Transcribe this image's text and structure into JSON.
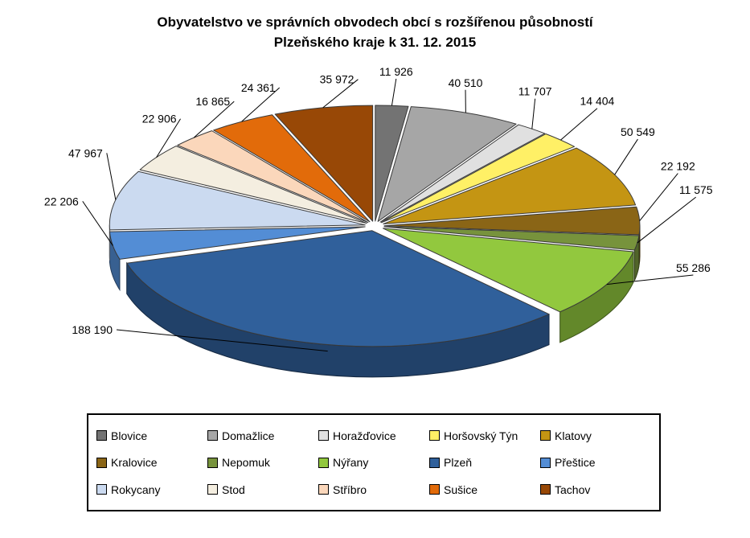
{
  "title": {
    "line1": "Obyvatelstvo ve správních obvodech obcí s rozšířenou působností",
    "line2": "Plzeňského kraje k 31. 12. 2015"
  },
  "chart_data": {
    "type": "pie",
    "style": "3d-exploded-pie",
    "title": "Obyvatelstvo ve správních obvodech obcí s rozšířenou působností Plzeňského kraje k 31. 12. 2015",
    "total": 576616,
    "start_angle_deg": -90,
    "direction": "clockwise",
    "legend_position": "bottom",
    "categories": [
      "Blovice",
      "Domažlice",
      "Horažďovice",
      "Horšovský Týn",
      "Klatovy",
      "Kralovice",
      "Nepomuk",
      "Nýřany",
      "Plzeň",
      "Přeštice",
      "Rokycany",
      "Stod",
      "Stříbro",
      "Sušice",
      "Tachov"
    ],
    "values": [
      11926,
      40510,
      11707,
      14404,
      50549,
      22192,
      11575,
      55286,
      188190,
      22206,
      47967,
      22906,
      16865,
      24361,
      35972
    ],
    "labels": [
      "11 926",
      "40 510",
      "11 707",
      "14 404",
      "50 549",
      "22 192",
      "11 575",
      "55 286",
      "188 190",
      "22 206",
      "47 967",
      "22 906",
      "16 865",
      "24 361",
      "35 972"
    ],
    "colors": [
      "#737373",
      "#A6A6A6",
      "#E0E0E0",
      "#FFF066",
      "#C49513",
      "#8A6516",
      "#77933C",
      "#92C83E",
      "#30609B",
      "#538DD5",
      "#CBDAF0",
      "#F4EEE0",
      "#FBD7BB",
      "#E26B0A",
      "#984806"
    ]
  }
}
